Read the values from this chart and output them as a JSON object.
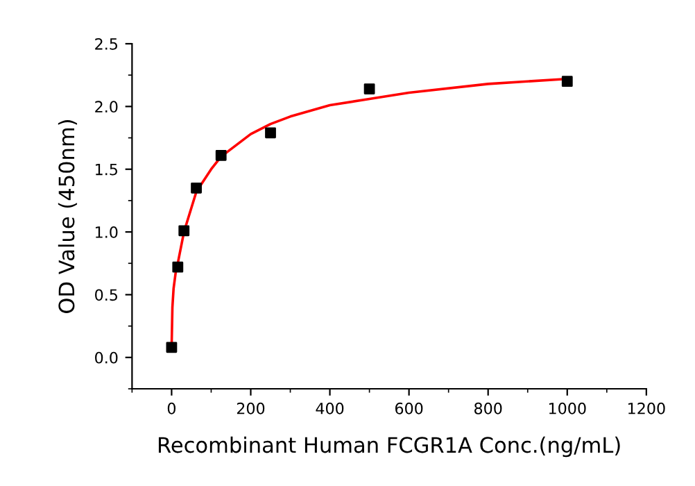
{
  "chart_data": {
    "type": "scatter",
    "xlabel": "Recombinant Human FCGR1A Conc.(ng/mL)",
    "ylabel": "OD Value (450nm)",
    "xlim": [
      -100,
      1200
    ],
    "ylim": [
      -0.25,
      2.5
    ],
    "xticks": [
      0,
      200,
      400,
      600,
      800,
      1000,
      1200
    ],
    "yticks": [
      {
        "value": 0,
        "label": "0.0"
      },
      {
        "value": 0.5,
        "label": "0.5"
      },
      {
        "value": 1,
        "label": "1.0"
      },
      {
        "value": 1.5,
        "label": "1.5"
      },
      {
        "value": 2,
        "label": "2.0"
      },
      {
        "value": 2.5,
        "label": "2.5"
      }
    ],
    "grid": false,
    "legend": false,
    "series": [
      {
        "color": "#000000",
        "marker": "square",
        "x": [
          0,
          15.6,
          31.25,
          62.5,
          125,
          250,
          500,
          1000
        ],
        "values": [
          0.08,
          0.72,
          1.01,
          1.35,
          1.61,
          1.79,
          2.14,
          2.2
        ]
      },
      {
        "type": "line",
        "color": "#ff0000",
        "marker": "none",
        "line_style": "solid",
        "x": [
          0,
          2,
          5,
          10,
          15.6,
          31.25,
          62.5,
          100,
          125,
          200,
          250,
          300,
          400,
          500,
          600,
          800,
          1000
        ],
        "values": [
          0.08,
          0.4,
          0.55,
          0.67,
          0.75,
          1.0,
          1.32,
          1.5,
          1.6,
          1.78,
          1.86,
          1.92,
          2.01,
          2.06,
          2.11,
          2.18,
          2.22
        ]
      }
    ]
  }
}
